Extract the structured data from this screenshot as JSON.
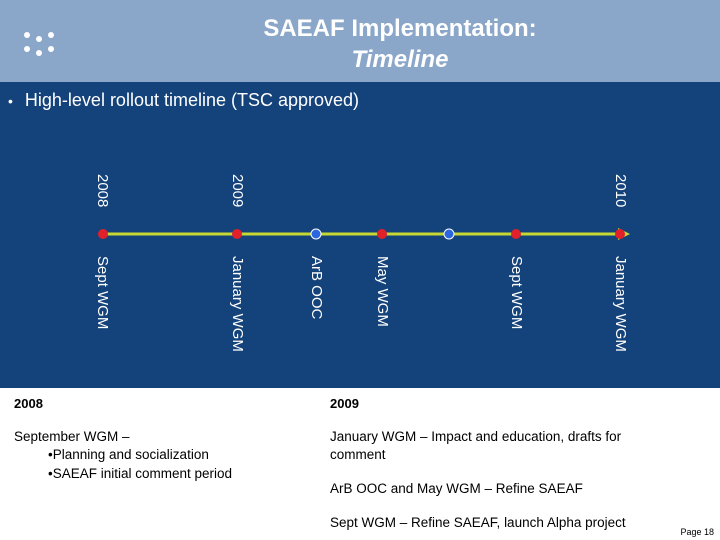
{
  "header": {
    "title_line1": "SAEAF Implementation:",
    "title_line2": "Timeline",
    "logo_icon": "dots-logo-icon",
    "background": "#8aa6c8"
  },
  "main": {
    "bullet": "High-level rollout timeline (TSC approved)",
    "background": "#14427a",
    "timeline": {
      "line_color": "#c8d832",
      "years": [
        "2008",
        "2009",
        "2010"
      ],
      "events": [
        "Sept WGM",
        "January WGM",
        "ArB OOC",
        "May WGM",
        "Sept WGM",
        "January WGM"
      ],
      "marker_colors": {
        "red": "#e0202a",
        "blue": "#2a66e0"
      }
    }
  },
  "notes": {
    "col1": {
      "year": "2008",
      "heading": "September WGM –",
      "items": [
        "•Planning and socialization",
        "•SAEAF initial comment period"
      ]
    },
    "col2": {
      "year": "2009",
      "line1": "January WGM – Impact and education, drafts for",
      "line2": "comment",
      "line3": "ArB OOC and May WGM – Refine SAEAF",
      "line4": "Sept WGM – Refine SAEAF, launch Alpha project"
    }
  },
  "footer": {
    "page": "Page 18"
  }
}
